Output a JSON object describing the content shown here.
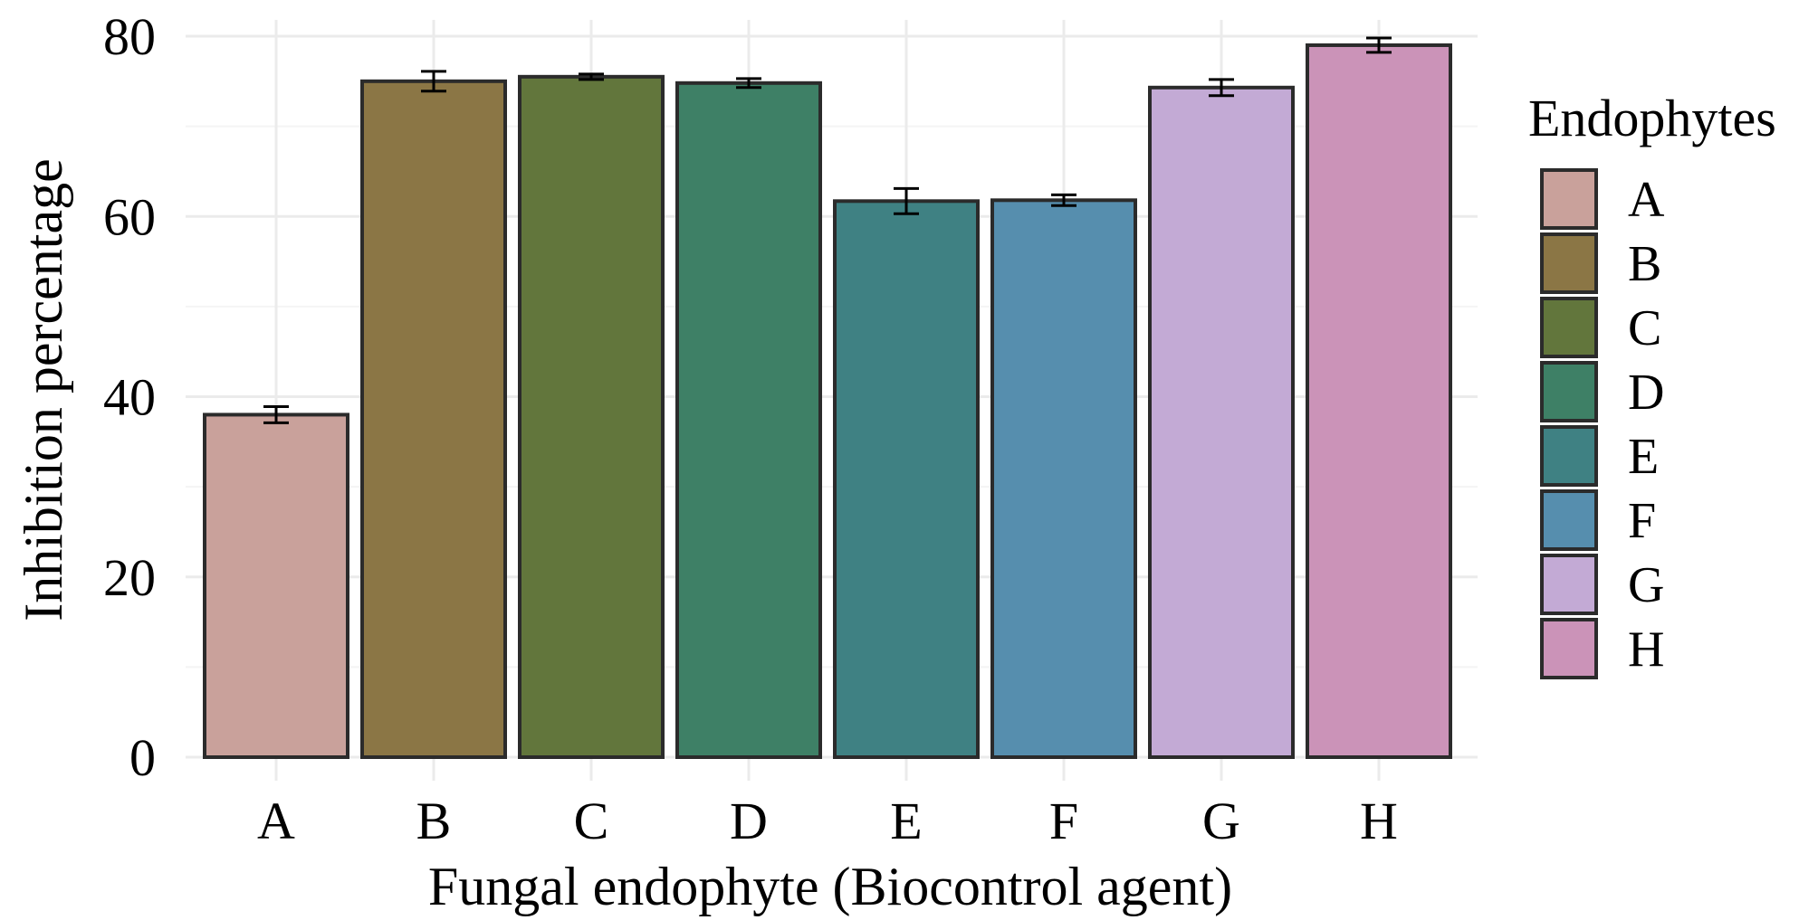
{
  "chart_data": {
    "type": "bar",
    "title": "",
    "xlabel": "Fungal endophyte (Biocontrol agent)",
    "ylabel": "Inhibition percentage",
    "ylim": [
      0,
      80
    ],
    "yticks": [
      "0",
      "20",
      "40",
      "60",
      "80"
    ],
    "grid": true,
    "categories": [
      "A",
      "B",
      "C",
      "D",
      "E",
      "F",
      "G",
      "H"
    ],
    "values": [
      38.0,
      75.0,
      75.5,
      74.8,
      61.7,
      61.8,
      74.3,
      79.0
    ],
    "error": [
      0.9,
      1.1,
      0.3,
      0.5,
      1.4,
      0.6,
      0.9,
      0.8
    ],
    "colors": [
      "#c9a19b",
      "#8b7645",
      "#62763c",
      "#3e8066",
      "#3f8183",
      "#568eae",
      "#c3aad5",
      "#cb93b8"
    ],
    "legend": {
      "title": "Endophytes",
      "position": "right",
      "items": [
        "A",
        "B",
        "C",
        "D",
        "E",
        "F",
        "G",
        "H"
      ]
    }
  }
}
